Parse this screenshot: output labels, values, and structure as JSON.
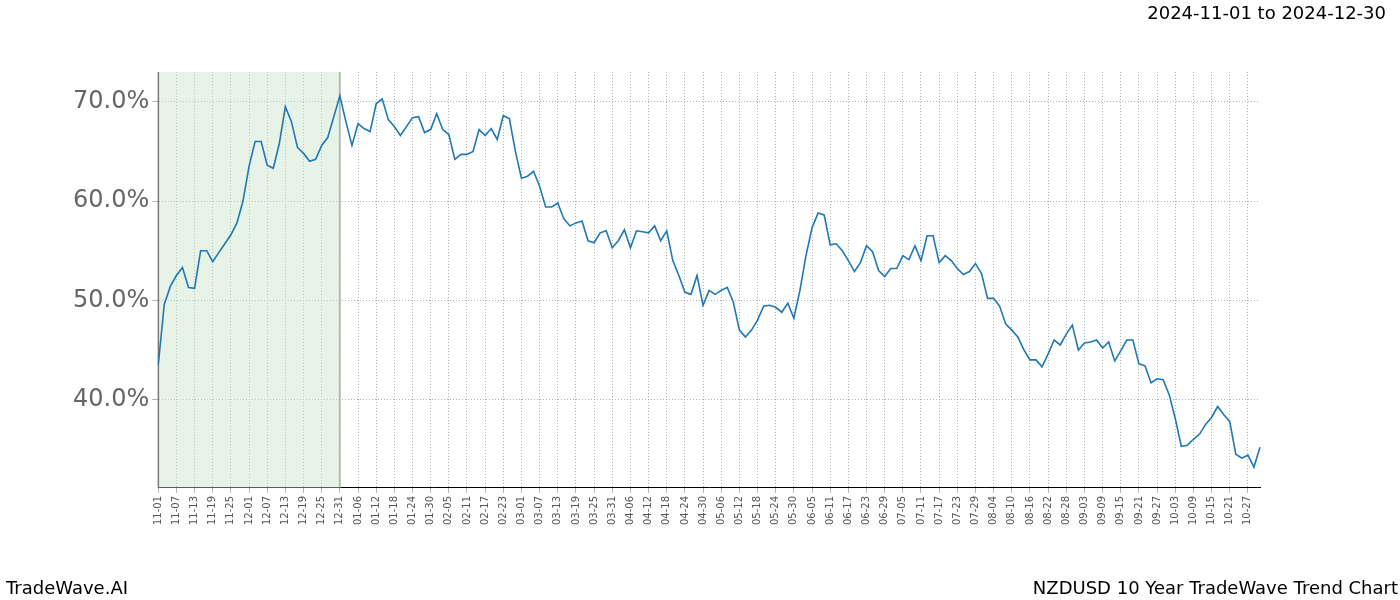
{
  "chart_data": {
    "type": "line",
    "title": "NZDUSD 10 Year TradeWave Trend Chart",
    "subtitle": "2024-11-01 to 2024-12-30",
    "source": "TradeWave.AI",
    "color": "#1f77b4",
    "grid": true,
    "shaded_range": [
      "11-01",
      "12-31"
    ],
    "ylim": [
      31.1,
      73.0
    ],
    "yticks": [
      {
        "value": 40,
        "label": "40.0%"
      },
      {
        "value": 50,
        "label": "50.0%"
      },
      {
        "value": 60,
        "label": "60.0%"
      },
      {
        "value": 70,
        "label": "70.0%"
      }
    ],
    "categories": [
      "11-01",
      null,
      null,
      "11-07",
      null,
      null,
      "11-13",
      null,
      null,
      "11-19",
      null,
      null,
      "11-25",
      null,
      null,
      "12-01",
      null,
      null,
      "12-07",
      null,
      null,
      "12-13",
      null,
      null,
      "12-19",
      null,
      null,
      "12-25",
      null,
      null,
      "12-31",
      null,
      null,
      "01-06",
      null,
      null,
      "01-12",
      null,
      null,
      "01-18",
      null,
      null,
      "01-24",
      null,
      null,
      "01-30",
      null,
      null,
      "02-05",
      null,
      null,
      "02-11",
      null,
      null,
      "02-17",
      null,
      null,
      "02-23",
      null,
      null,
      "03-01",
      null,
      null,
      "03-07",
      null,
      null,
      "03-13",
      null,
      null,
      "03-19",
      null,
      null,
      "03-25",
      null,
      null,
      "03-31",
      null,
      null,
      "04-06",
      null,
      null,
      "04-12",
      null,
      null,
      "04-18",
      null,
      null,
      "04-24",
      null,
      null,
      "04-30",
      null,
      null,
      "05-06",
      null,
      null,
      "05-12",
      null,
      null,
      "05-18",
      null,
      null,
      "05-24",
      null,
      null,
      "05-30",
      null,
      null,
      "06-05",
      null,
      null,
      "06-11",
      null,
      null,
      "06-17",
      null,
      null,
      "06-23",
      null,
      null,
      "06-29",
      null,
      null,
      "07-05",
      null,
      null,
      "07-11",
      null,
      null,
      "07-17",
      null,
      null,
      "07-23",
      null,
      null,
      "07-29",
      null,
      null,
      "08-04",
      null,
      null,
      "08-10",
      null,
      null,
      "08-16",
      null,
      null,
      "08-22",
      null,
      null,
      "08-28",
      null,
      null,
      "09-03",
      null,
      null,
      "09-09",
      null,
      null,
      "09-15",
      null,
      null,
      "09-21",
      null,
      null,
      "09-27",
      null,
      null,
      "10-03",
      null,
      null,
      "10-09",
      null,
      null,
      "10-15",
      null,
      null,
      "10-21",
      null,
      null,
      "10-27",
      null,
      null
    ],
    "values": [
      43.5,
      49.6,
      51.4,
      52.5,
      53.3,
      51.3,
      51.2,
      55,
      55,
      53.9,
      54.8,
      55.7,
      56.6,
      57.8,
      60,
      63.5,
      66,
      66,
      63.6,
      63.3,
      65.8,
      69.5,
      68,
      65.4,
      64.8,
      64,
      64.2,
      65.6,
      66.4,
      68.5,
      70.6,
      68,
      65.6,
      67.8,
      67.3,
      67,
      69.8,
      70.3,
      68.2,
      67.5,
      66.6,
      67.5,
      68.4,
      68.5,
      66.9,
      67.2,
      68.8,
      67.2,
      66.7,
      64.2,
      64.7,
      64.7,
      65,
      67.2,
      66.6,
      67.3,
      66.2,
      68.6,
      68.3,
      65,
      62.3,
      62.5,
      63,
      61.5,
      59.4,
      59.4,
      59.8,
      58.2,
      57.5,
      57.8,
      58,
      56,
      55.8,
      56.8,
      57,
      55.3,
      56,
      57.1,
      55.3,
      57,
      56.9,
      56.8,
      57.5,
      56,
      57,
      54,
      52.5,
      50.8,
      50.6,
      52.5,
      49.5,
      51,
      50.6,
      51,
      51.3,
      49.8,
      47,
      46.3,
      47,
      48,
      49.4,
      49.5,
      49.3,
      48.8,
      49.7,
      48.2,
      51,
      54.5,
      57.3,
      58.8,
      58.6,
      55.6,
      55.7,
      55,
      54,
      52.9,
      53.8,
      55.5,
      54.9,
      53,
      52.4,
      53.2,
      53.2,
      54.5,
      54.1,
      55.5,
      54,
      56.5,
      56.5,
      53.8,
      54.5,
      54,
      53.2,
      52.6,
      52.9,
      53.7,
      52.7,
      50.2,
      50.2,
      49.4,
      47.6,
      47,
      46.3,
      45,
      44,
      44,
      43.3,
      44.6,
      46,
      45.5,
      46.6,
      47.5,
      45,
      45.7,
      45.8,
      46,
      45.2,
      45.8,
      43.9,
      44.9,
      46,
      46,
      43.6,
      43.4,
      41.7,
      42.1,
      42,
      40.5,
      38.1,
      35.3,
      35.4,
      36,
      36.5,
      37.5,
      38.2,
      39.3,
      38.5,
      37.8,
      34.5,
      34.1,
      34.4,
      33.2,
      35.2
    ]
  }
}
